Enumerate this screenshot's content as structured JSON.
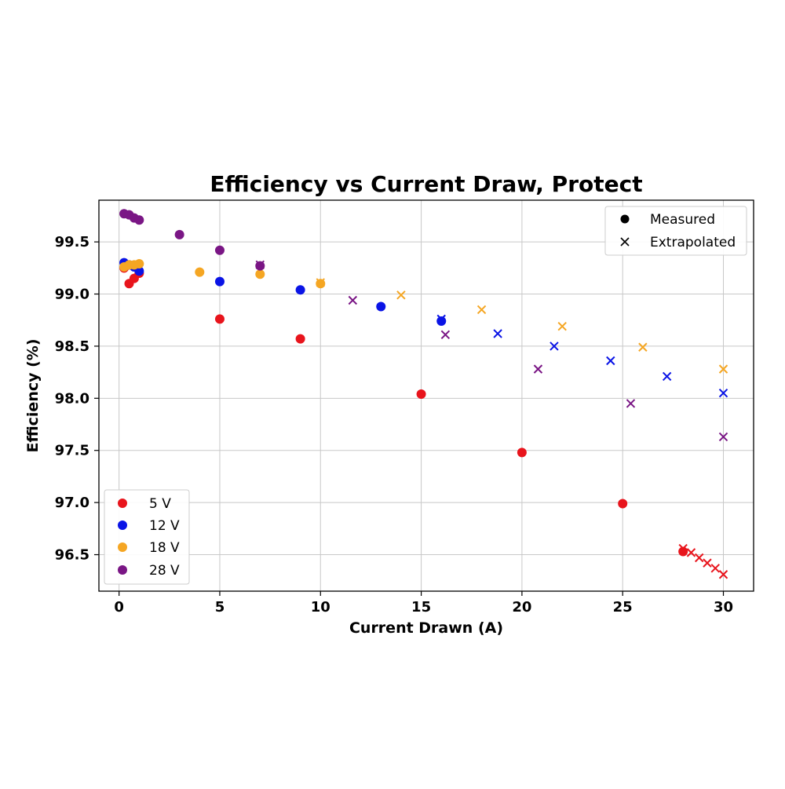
{
  "chart_data": {
    "type": "scatter",
    "title": "Efficiency vs Current Draw, Protect",
    "xlabel": "Current Drawn (A)",
    "ylabel": "Efficiency (%)",
    "xlim": [
      -1.0,
      31.5
    ],
    "ylim": [
      96.15,
      99.9
    ],
    "xticks": [
      0,
      5,
      10,
      15,
      20,
      25,
      30
    ],
    "yticks": [
      96.5,
      97.0,
      97.5,
      98.0,
      98.5,
      99.0,
      99.5
    ],
    "xtick_labels": [
      "0",
      "5",
      "10",
      "15",
      "20",
      "25",
      "30"
    ],
    "ytick_labels": [
      "96.5",
      "97.0",
      "97.5",
      "98.0",
      "98.5",
      "99.0",
      "99.5"
    ],
    "grid": true,
    "legend_markers": {
      "placement": "top-right",
      "entries": [
        {
          "label": "Measured",
          "marker": "circle"
        },
        {
          "label": "Extrapolated",
          "marker": "x"
        }
      ]
    },
    "legend_series": {
      "placement": "lower-left",
      "entries": [
        "5 V",
        "12 V",
        "18 V",
        "28 V"
      ]
    },
    "series": [
      {
        "name": "5 V",
        "color": "#e8141c",
        "measured": [
          [
            0.25,
            99.25
          ],
          [
            0.5,
            99.1
          ],
          [
            0.75,
            99.15
          ],
          [
            1.0,
            99.2
          ],
          [
            5,
            98.76
          ],
          [
            9,
            98.57
          ],
          [
            15,
            98.04
          ],
          [
            20,
            97.48
          ],
          [
            25,
            96.99
          ],
          [
            28,
            96.53
          ]
        ],
        "extrapolated": [
          [
            28,
            96.56
          ],
          [
            28.4,
            96.52
          ],
          [
            28.8,
            96.47
          ],
          [
            29.2,
            96.42
          ],
          [
            29.6,
            96.37
          ],
          [
            30,
            96.31
          ]
        ]
      },
      {
        "name": "12 V",
        "color": "#0a14e6",
        "measured": [
          [
            0.25,
            99.3
          ],
          [
            0.5,
            99.28
          ],
          [
            0.75,
            99.26
          ],
          [
            1.0,
            99.22
          ],
          [
            5,
            99.12
          ],
          [
            9,
            99.04
          ],
          [
            13,
            98.88
          ],
          [
            16,
            98.74
          ]
        ],
        "extrapolated": [
          [
            16,
            98.76
          ],
          [
            18.8,
            98.62
          ],
          [
            21.6,
            98.5
          ],
          [
            24.4,
            98.36
          ],
          [
            27.2,
            98.21
          ],
          [
            30,
            98.05
          ]
        ]
      },
      {
        "name": "18 V",
        "color": "#f5a623",
        "measured": [
          [
            0.25,
            99.26
          ],
          [
            0.5,
            99.28
          ],
          [
            0.75,
            99.28
          ],
          [
            1.0,
            99.29
          ],
          [
            4,
            99.21
          ],
          [
            7,
            99.19
          ],
          [
            10,
            99.1
          ]
        ],
        "extrapolated": [
          [
            10,
            99.11
          ],
          [
            14,
            98.99
          ],
          [
            18,
            98.85
          ],
          [
            22,
            98.69
          ],
          [
            26,
            98.49
          ],
          [
            30,
            98.28
          ]
        ]
      },
      {
        "name": "28 V",
        "color": "#7a1685",
        "measured": [
          [
            0.25,
            99.77
          ],
          [
            0.5,
            99.76
          ],
          [
            0.75,
            99.73
          ],
          [
            1.0,
            99.71
          ],
          [
            3,
            99.57
          ],
          [
            5,
            99.42
          ],
          [
            7,
            99.27
          ]
        ],
        "extrapolated": [
          [
            7,
            99.28
          ],
          [
            11.6,
            98.94
          ],
          [
            16.2,
            98.61
          ],
          [
            20.8,
            98.28
          ],
          [
            25.4,
            97.95
          ],
          [
            30,
            97.63
          ]
        ]
      }
    ]
  }
}
